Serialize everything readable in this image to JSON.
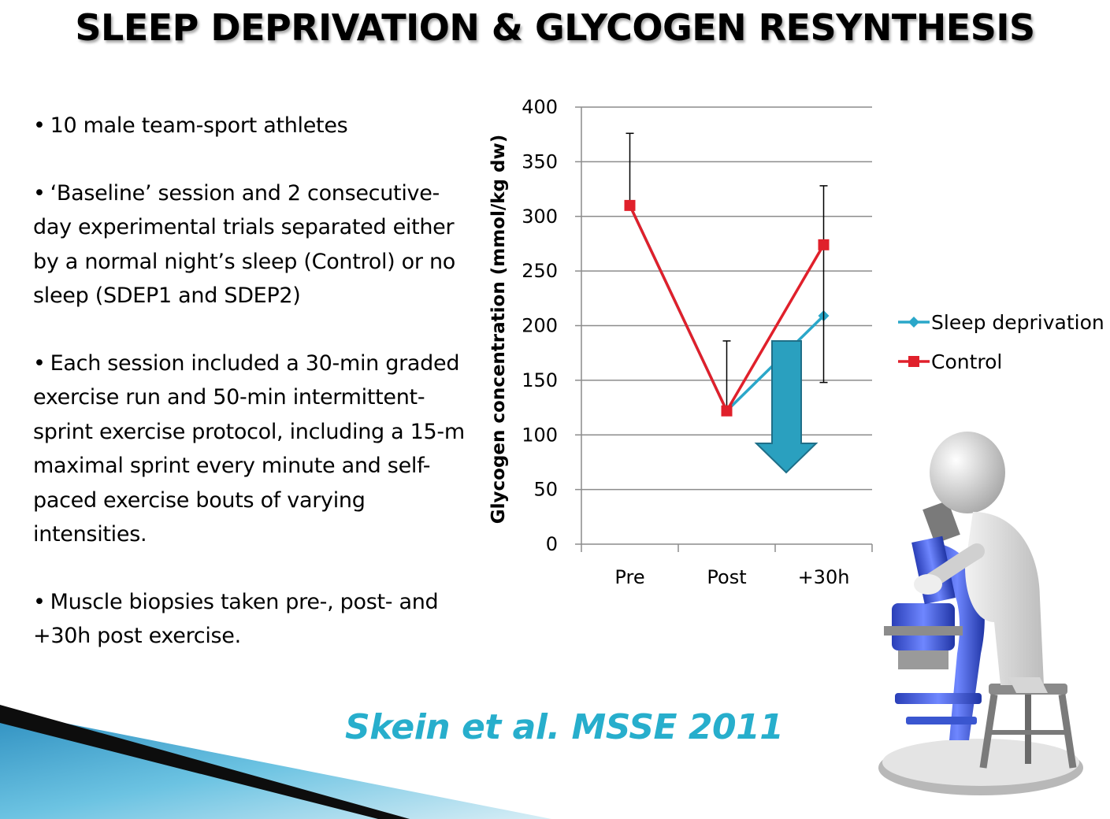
{
  "slide": {
    "title": "SLEEP DEPRIVATION & GLYCOGEN RESYNTHESIS",
    "citation": "Skein et al. MSSE 2011"
  },
  "bullets": [
    {
      "dot": "•",
      "text": "10 male team-sport athletes"
    },
    {
      "dot": "•",
      "text": "‘Baseline’ session and 2 consecutive-day experimental trials separated either by a normal night’s sleep (Control) or no sleep (SDEP1 and SDEP2)"
    },
    {
      "dot": "•",
      "text": "Each session included a 30-min graded exercise run and 50-min intermittent-sprint exercise protocol, including a 15-m maximal sprint every minute and self-paced exercise bouts of varying intensities."
    },
    {
      "dot": "•",
      "text": "Muscle biopsies taken pre-, post- and +30h post exercise."
    }
  ],
  "chart_data": {
    "type": "line",
    "categories": [
      "Pre",
      "Post",
      "+30h"
    ],
    "ylabel": "Glycogen concentration (mmol/kg dw)",
    "xlabel": "",
    "ylim": [
      0,
      400
    ],
    "yticks": [
      0,
      50,
      100,
      150,
      200,
      250,
      300,
      350,
      400
    ],
    "grid": true,
    "legend_position": "right",
    "series": [
      {
        "name": "Sleep deprivation",
        "color": "#2aa7c9",
        "marker": "diamond",
        "values": [
          310,
          122,
          209
        ]
      },
      {
        "name": "Control",
        "color": "#e0202b",
        "marker": "square",
        "values": [
          310,
          122,
          274
        ],
        "error_upper": [
          376,
          186,
          328
        ],
        "error_lower": [
          310,
          122,
          148
        ]
      }
    ],
    "annotation": {
      "type": "down-arrow",
      "color": "#2aa0bf"
    }
  },
  "colors": {
    "citation": "#27aecc",
    "decor_dark": "#111111",
    "decor_blue": "#3aa6cf",
    "microscope_blue": "#3d5fd6"
  }
}
